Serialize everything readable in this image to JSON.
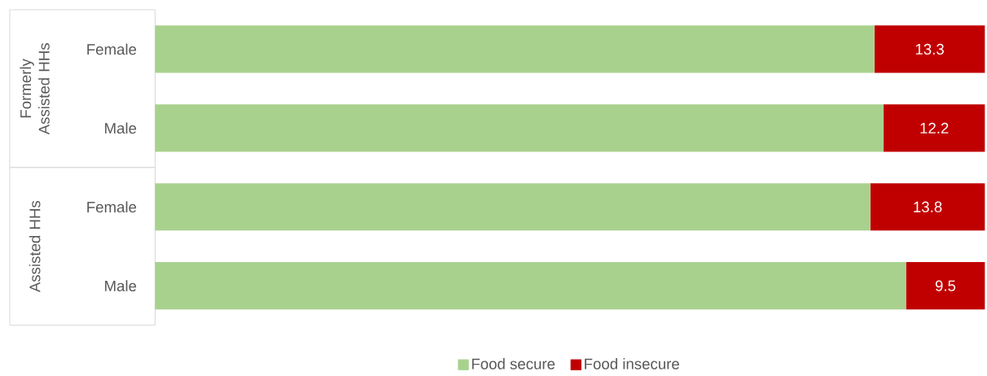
{
  "chart_data": {
    "type": "bar",
    "orientation": "horizontal",
    "stacked": true,
    "categories": [
      "Female",
      "Male",
      "Female",
      "Male"
    ],
    "series": [
      {
        "name": "Food secure",
        "color": "#a9d18e",
        "values": [
          86.7,
          87.8,
          86.2,
          90.5
        ]
      },
      {
        "name": "Food insecure",
        "color": "#c00000",
        "values": [
          13.3,
          12.2,
          13.8,
          9.5
        ],
        "value_labels": [
          "13.3",
          "12.2",
          "13.8",
          "9.5"
        ]
      }
    ],
    "tick_labels": "y",
    "legend": "bottom",
    "annotations": [
      "Formerly Assisted HHs",
      "Assisted HHs"
    ]
  }
}
